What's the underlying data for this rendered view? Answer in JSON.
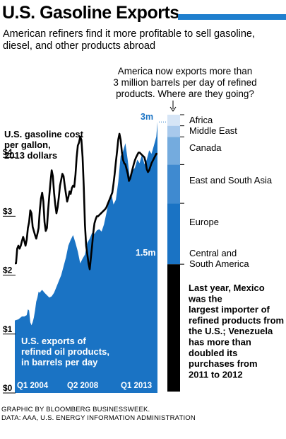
{
  "title": "U.S. Gasoline Exports",
  "subtitle": "American refiners find it more profitable to sell gasoline, diesel, and other products abroad",
  "chart_data": {
    "type": "area",
    "x_tick_labels": [
      "Q1 2004",
      "Q2 2008",
      "Q1 2013"
    ],
    "price_axis": {
      "ticks": [
        "$0",
        "$1",
        "$2",
        "$3",
        "$4"
      ],
      "ylim": [
        0,
        4.6
      ]
    },
    "exports_axis": {
      "ylim": [
        0,
        4.6
      ],
      "unit": "million barrels per day"
    },
    "series": [
      {
        "name": "U.S. gasoline cost per gallon, 2013 dollars",
        "type": "line",
        "color": "#000000",
        "quarters": [
          0,
          1,
          2,
          3,
          4,
          5,
          6,
          7,
          8,
          9,
          10,
          11,
          12,
          13,
          14,
          15,
          16,
          17,
          18,
          19,
          20,
          21,
          22,
          23,
          24,
          25,
          26,
          27,
          28,
          29,
          30,
          31,
          32,
          33,
          34,
          35,
          36,
          37,
          38,
          39,
          40,
          41,
          42,
          43,
          44,
          45,
          46,
          47,
          48,
          49,
          50,
          51,
          52,
          53,
          54,
          55,
          56,
          57,
          58,
          59,
          60,
          61,
          62,
          63,
          64,
          65,
          66,
          67,
          68,
          69,
          70,
          71,
          72,
          73,
          74,
          75,
          76,
          77,
          78,
          79,
          80,
          81,
          82,
          83,
          84,
          85,
          86,
          87,
          88,
          89,
          90,
          91,
          92,
          93,
          94,
          95,
          96,
          97,
          98,
          99,
          100,
          101,
          102,
          103,
          104,
          105,
          106,
          107,
          108,
          109,
          110,
          111,
          112,
          113,
          114,
          115,
          116,
          117,
          118,
          119,
          120
        ],
        "values": [
          2.2,
          2.2,
          2.45,
          2.5,
          2.45,
          2.5,
          2.58,
          2.65,
          2.58,
          2.5,
          2.6,
          2.8,
          2.9,
          3.1,
          3.05,
          2.82,
          2.75,
          2.68,
          2.62,
          2.7,
          2.8,
          3.1,
          3.3,
          3.4,
          3.25,
          2.9,
          2.75,
          2.8,
          3.1,
          3.35,
          3.58,
          3.78,
          3.68,
          3.4,
          3.2,
          3.05,
          3.15,
          3.32,
          3.52,
          3.62,
          3.72,
          3.68,
          3.52,
          3.38,
          3.25,
          3.32,
          3.42,
          3.38,
          3.48,
          3.52,
          3.5,
          3.7,
          4.0,
          4.2,
          4.25,
          4.35,
          4.3,
          4.0,
          3.5,
          2.85,
          2.5,
          2.35,
          2.2,
          2.1,
          2.3,
          2.5,
          2.72,
          2.88,
          2.95,
          3.0,
          3.0,
          3.02,
          3.04,
          3.06,
          3.08,
          3.1,
          3.12,
          3.15,
          3.2,
          3.25,
          3.3,
          3.35,
          3.4,
          3.55,
          3.72,
          3.92,
          4.1,
          4.3,
          4.4,
          4.3,
          4.1,
          3.96,
          3.9,
          3.88,
          3.8,
          3.72,
          3.6,
          3.64,
          3.72,
          3.8,
          3.88,
          3.95,
          4.0,
          4.04,
          4.08,
          4.08,
          4.06,
          4.04,
          4.02,
          4.0,
          3.92,
          3.8,
          3.75,
          3.78,
          3.84,
          3.9,
          3.94,
          3.98,
          4.02,
          4.06,
          4.06
        ]
      },
      {
        "name": "U.S. exports of refined oil products, in barrels per day",
        "type": "area",
        "color": "#1a73c4",
        "quarters": [
          0,
          3,
          6,
          8,
          10,
          11,
          12,
          13,
          14,
          15,
          16,
          17,
          18,
          19,
          20,
          21,
          22,
          23,
          25,
          27,
          29,
          31,
          33,
          35,
          37,
          39,
          41,
          43,
          45,
          47,
          49,
          51,
          53,
          55,
          57,
          59,
          61,
          63,
          65,
          67,
          69,
          71,
          73,
          75,
          77,
          79,
          81,
          83,
          85,
          87,
          89,
          91,
          93,
          95,
          97,
          99,
          101,
          103,
          105,
          107,
          109,
          111,
          113,
          115,
          117,
          119,
          120
        ],
        "values": [
          1.23,
          1.25,
          1.3,
          1.3,
          1.32,
          1.42,
          1.4,
          1.2,
          1.15,
          1.2,
          1.28,
          1.4,
          1.55,
          1.62,
          1.72,
          1.7,
          1.73,
          1.75,
          1.7,
          1.66,
          1.62,
          1.64,
          1.7,
          1.8,
          1.9,
          2.0,
          2.15,
          2.3,
          2.5,
          2.6,
          2.68,
          2.55,
          2.4,
          2.2,
          2.28,
          2.35,
          2.55,
          2.62,
          2.72,
          2.7,
          2.76,
          2.78,
          2.74,
          2.86,
          3.05,
          3.25,
          3.4,
          3.2,
          3.28,
          3.58,
          4.02,
          4.1,
          4.24,
          3.95,
          3.6,
          3.78,
          3.82,
          3.96,
          3.9,
          4.05,
          3.88,
          3.96,
          4.12,
          4.06,
          4.2,
          4.35,
          4.6
        ]
      }
    ],
    "annotations": {
      "price_label": "U.S. gasoline cost per gallon, 2013 dollars",
      "exports_label": "U.S. exports of refined oil products, in barrels per day",
      "label_3m": "3m",
      "label_15m": "1.5m",
      "callout": "America now exports more than 3 million barrels per day of refined products. Where are they going?",
      "note": "Last year, Mexico was the largest importer of refined products from the U.S.; Venezuela has more than doubled its purchases from 2011 to 2012"
    },
    "destinations": [
      {
        "name": "Central and South America",
        "share": 0.46,
        "color": "#000000"
      },
      {
        "name": "Europe",
        "share": 0.22,
        "color": "#1a73c4"
      },
      {
        "name": "East and South Asia",
        "share": 0.14,
        "color": "#3f8ad0"
      },
      {
        "name": "Canada",
        "share": 0.1,
        "color": "#74abde"
      },
      {
        "name": "Middle East",
        "share": 0.04,
        "color": "#a8c9ec"
      },
      {
        "name": "Africa",
        "share": 0.04,
        "color": "#d6e5f6"
      }
    ]
  },
  "footer": {
    "line1": "GRAPHIC BY BLOOMBERG BUSINESSWEEK.",
    "line2": "DATA: AAA, U.S. ENERGY INFORMATION ADMINISTRATION"
  }
}
